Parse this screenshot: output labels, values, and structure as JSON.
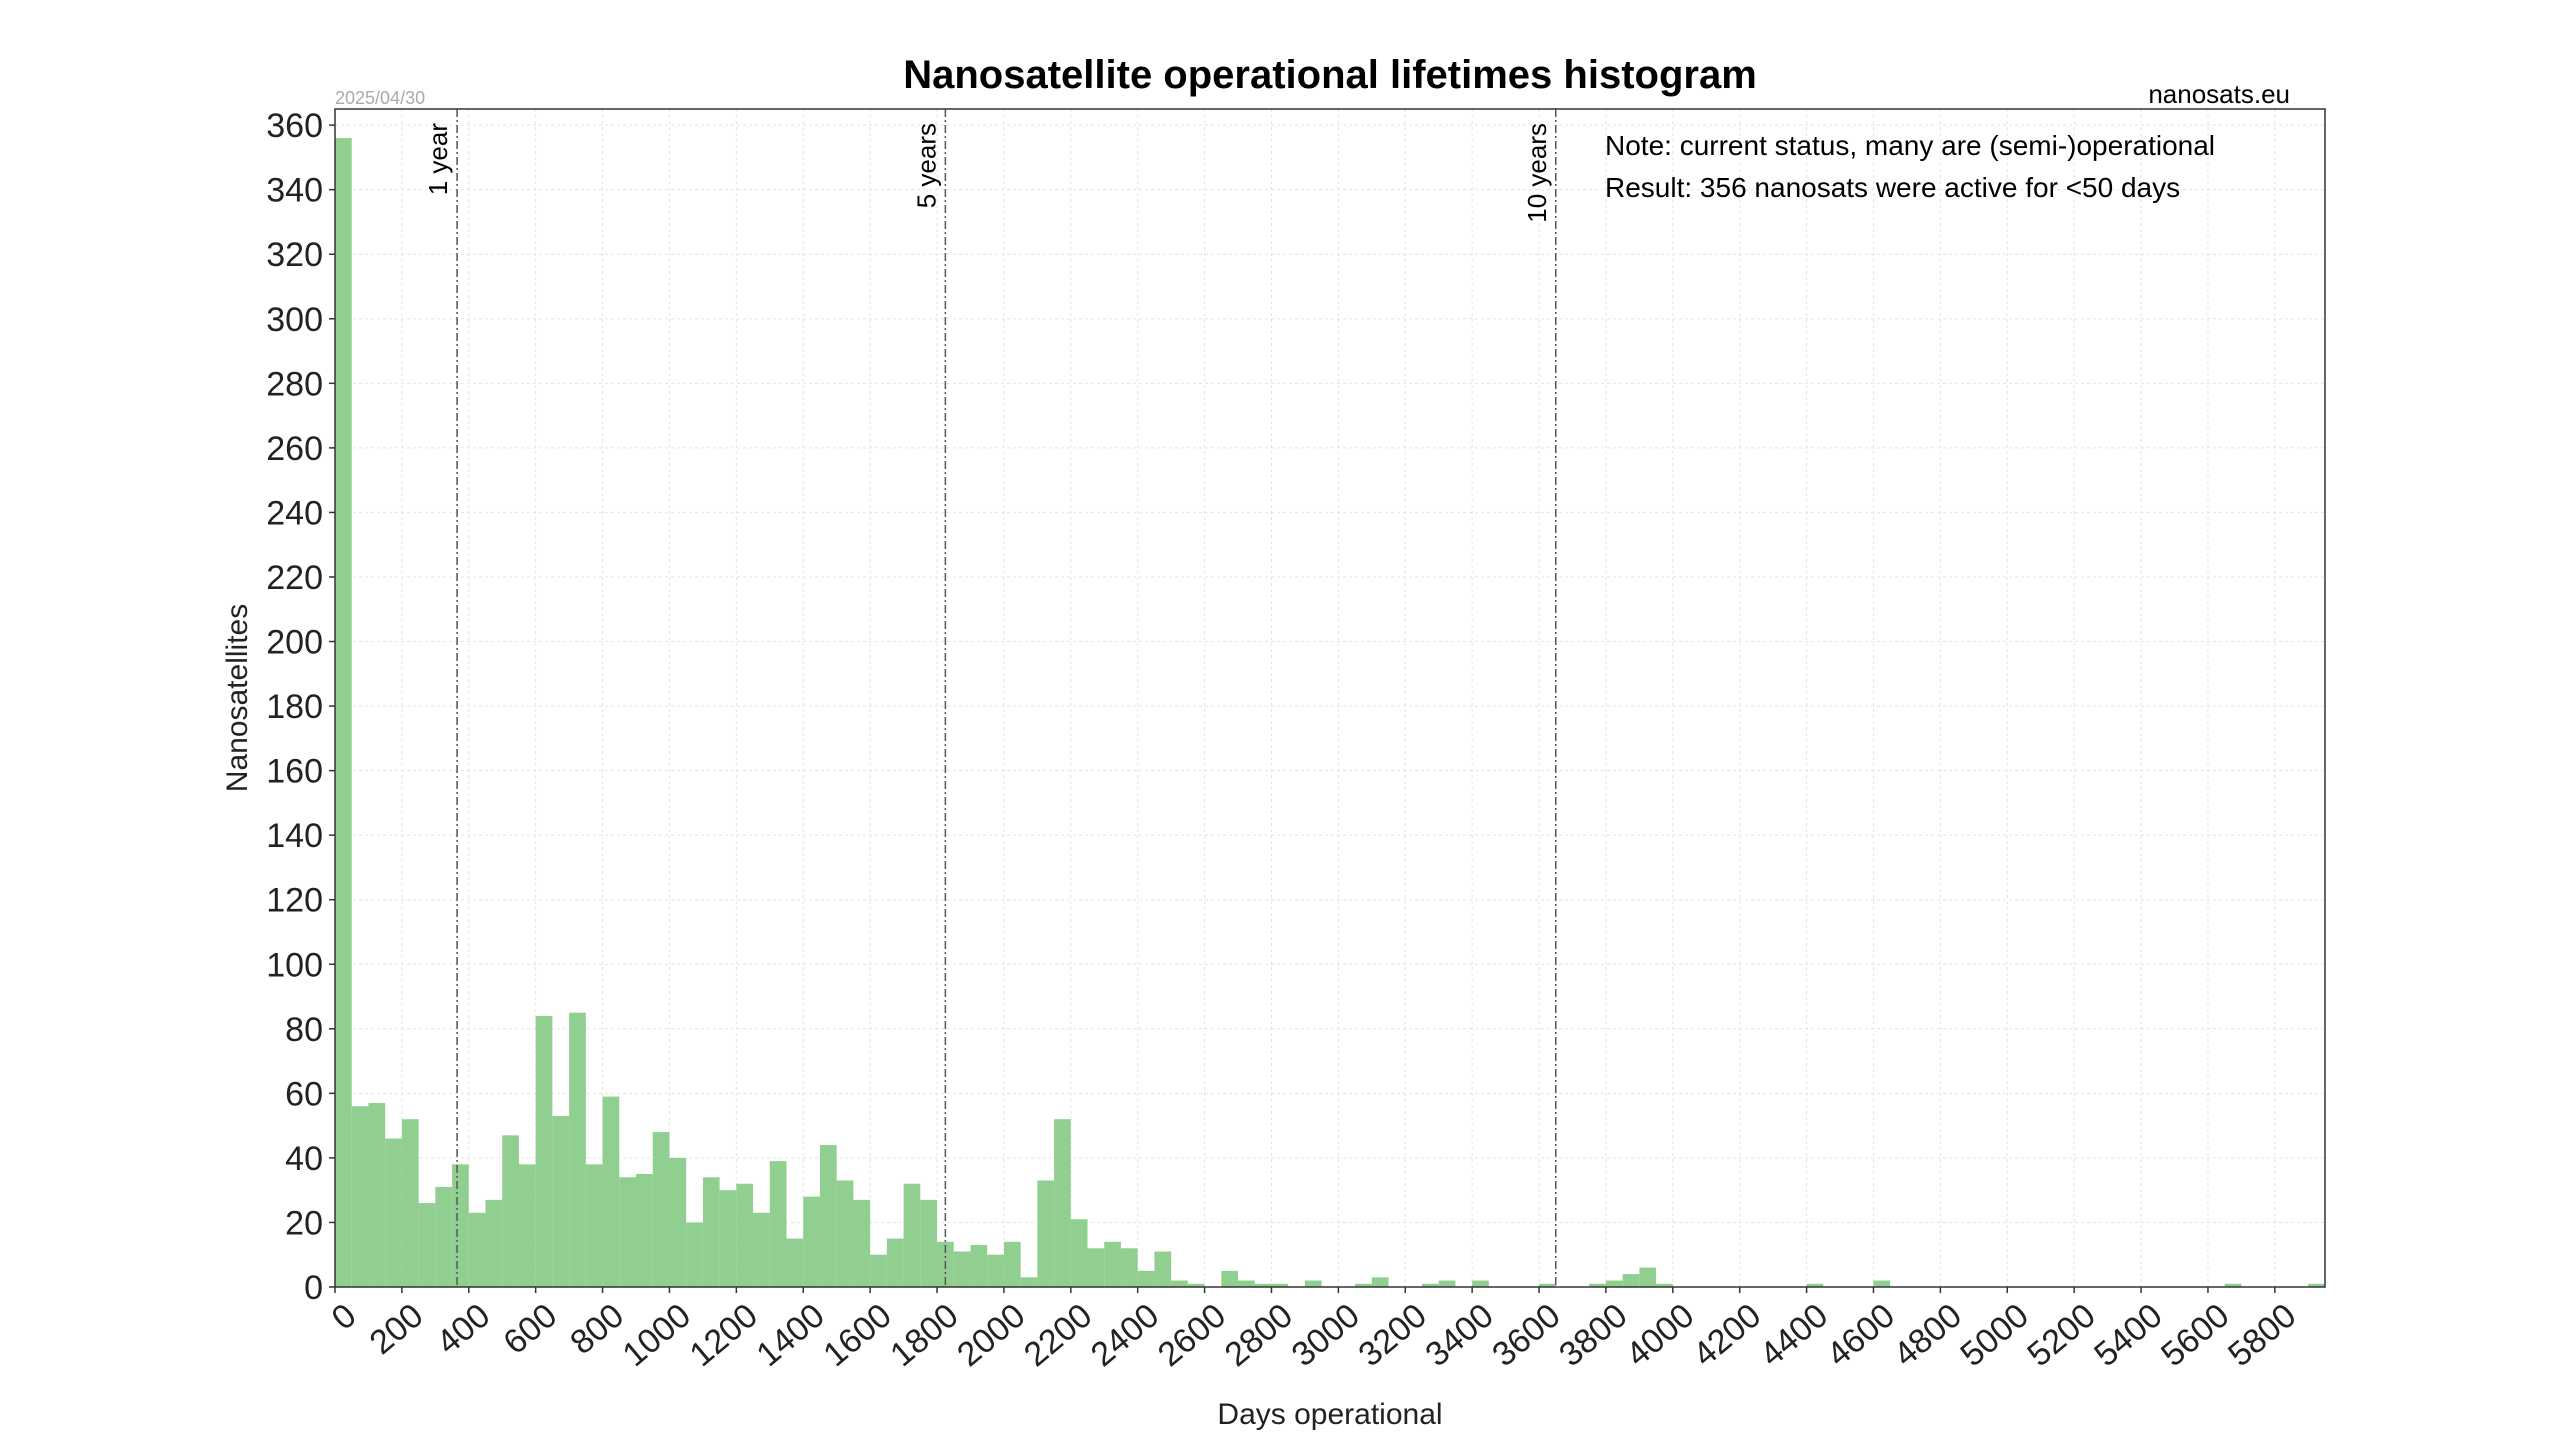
{
  "chart_data": {
    "type": "bar",
    "title": "Nanosatellite operational lifetimes histogram",
    "site": "nanosats.eu",
    "date": "2025/04/30",
    "xlabel": "Days operational",
    "ylabel": "Nanosatellites",
    "xlim": [
      0,
      5950
    ],
    "ylim": [
      0,
      365
    ],
    "bin_width": 50,
    "xticks": [
      0,
      200,
      400,
      600,
      800,
      1000,
      1200,
      1400,
      1600,
      1800,
      2000,
      2200,
      2400,
      2600,
      2800,
      3000,
      3200,
      3400,
      3600,
      3800,
      4000,
      4200,
      4400,
      4600,
      4800,
      5000,
      5200,
      5400,
      5600,
      5800
    ],
    "yticks": [
      0,
      20,
      40,
      60,
      80,
      100,
      120,
      140,
      160,
      180,
      200,
      220,
      240,
      260,
      280,
      300,
      320,
      340,
      360
    ],
    "grid": true,
    "bar_color": "#90CF90",
    "x": [
      0,
      50,
      100,
      150,
      200,
      250,
      300,
      350,
      400,
      450,
      500,
      550,
      600,
      650,
      700,
      750,
      800,
      850,
      900,
      950,
      1000,
      1050,
      1100,
      1150,
      1200,
      1250,
      1300,
      1350,
      1400,
      1450,
      1500,
      1550,
      1600,
      1650,
      1700,
      1750,
      1800,
      1850,
      1900,
      1950,
      2000,
      2050,
      2100,
      2150,
      2200,
      2250,
      2300,
      2350,
      2400,
      2450,
      2500,
      2550,
      2600,
      2650,
      2700,
      2750,
      2800,
      2850,
      2900,
      2950,
      3000,
      3050,
      3100,
      3150,
      3200,
      3250,
      3300,
      3350,
      3400,
      3450,
      3500,
      3550,
      3600,
      3650,
      3700,
      3750,
      3800,
      3850,
      3900,
      3950,
      4000,
      4050,
      4100,
      4150,
      4200,
      4250,
      4300,
      4350,
      4400,
      4450,
      4500,
      4550,
      4600,
      4650,
      4700,
      4750,
      4800,
      4850,
      4900,
      4950,
      5000,
      5050,
      5100,
      5150,
      5200,
      5250,
      5300,
      5350,
      5400,
      5450,
      5500,
      5550,
      5600,
      5650,
      5700,
      5750,
      5800,
      5850,
      5900
    ],
    "values": [
      356,
      56,
      57,
      46,
      52,
      26,
      31,
      38,
      23,
      27,
      47,
      38,
      84,
      53,
      85,
      38,
      59,
      34,
      35,
      48,
      40,
      20,
      34,
      30,
      32,
      23,
      39,
      15,
      28,
      44,
      33,
      27,
      10,
      15,
      32,
      27,
      14,
      11,
      13,
      10,
      14,
      3,
      33,
      52,
      21,
      12,
      14,
      12,
      5,
      11,
      2,
      1,
      0,
      5,
      2,
      1,
      1,
      0,
      2,
      0,
      0,
      1,
      3,
      0,
      0,
      1,
      2,
      0,
      2,
      0,
      0,
      0,
      1,
      0,
      0,
      1,
      2,
      4,
      6,
      1,
      0,
      0,
      0,
      0,
      0,
      0,
      0,
      0,
      1,
      0,
      0,
      0,
      2,
      0,
      0,
      0,
      0,
      0,
      0,
      0,
      0,
      0,
      0,
      0,
      0,
      0,
      0,
      0,
      0,
      0,
      0,
      0,
      0,
      1,
      0,
      0,
      0,
      0,
      1
    ],
    "reference_lines": [
      {
        "x": 365,
        "label": "1 year"
      },
      {
        "x": 1825,
        "label": "5 years"
      },
      {
        "x": 3650,
        "label": "10 years"
      }
    ],
    "annotations": [
      "Note: current status, many are (semi-)operational",
      "Result: 356 nanosats were active for <50 days"
    ]
  }
}
